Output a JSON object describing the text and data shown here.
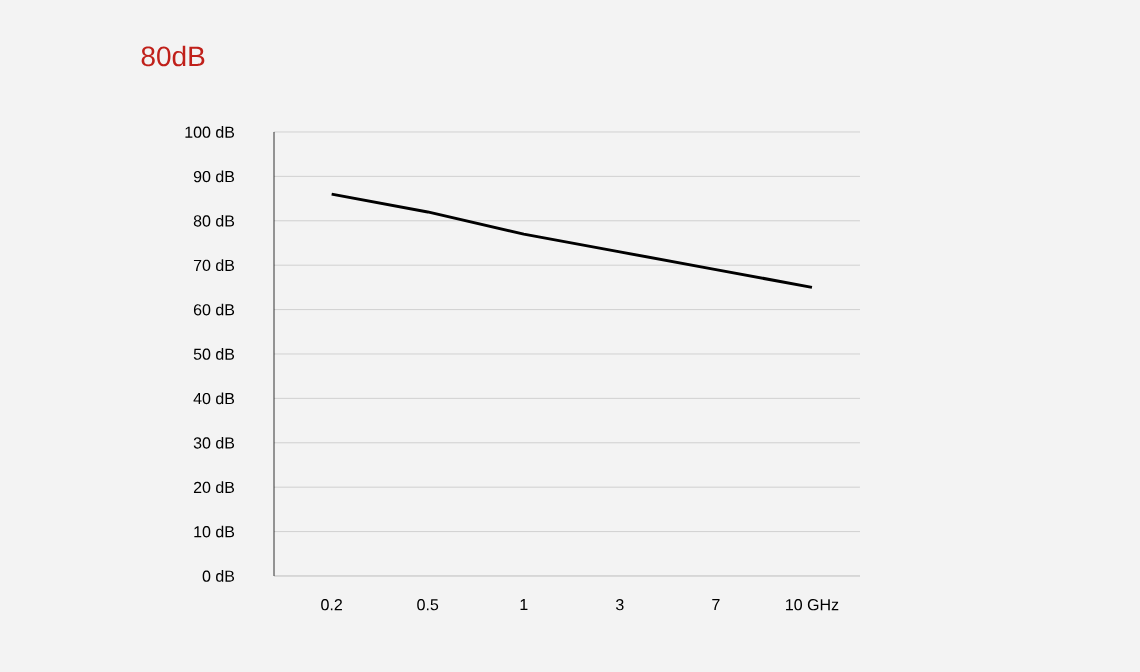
{
  "chart_data": {
    "type": "line",
    "title": "80dB",
    "categories": [
      "0.2",
      "0.5",
      "1",
      "3",
      "7",
      "10 GHz"
    ],
    "series": [
      {
        "color": "#000000",
        "values": [
          86,
          82,
          77,
          73,
          69,
          65
        ]
      }
    ],
    "ylim": [
      0,
      100
    ],
    "yticks": [
      {
        "value": 0,
        "label": "0 dB"
      },
      {
        "value": 10,
        "label": "10 dB"
      },
      {
        "value": 20,
        "label": "20 dB"
      },
      {
        "value": 30,
        "label": "30 dB"
      },
      {
        "value": 40,
        "label": "40 dB"
      },
      {
        "value": 50,
        "label": "50 dB"
      },
      {
        "value": 60,
        "label": "60 dB"
      },
      {
        "value": 70,
        "label": "70 dB"
      },
      {
        "value": 80,
        "label": "80 dB"
      },
      {
        "value": 90,
        "label": "90 dB"
      },
      {
        "value": 100,
        "label": "100 dB"
      }
    ],
    "grid": "y",
    "marker": "none",
    "line_style": "solid"
  }
}
